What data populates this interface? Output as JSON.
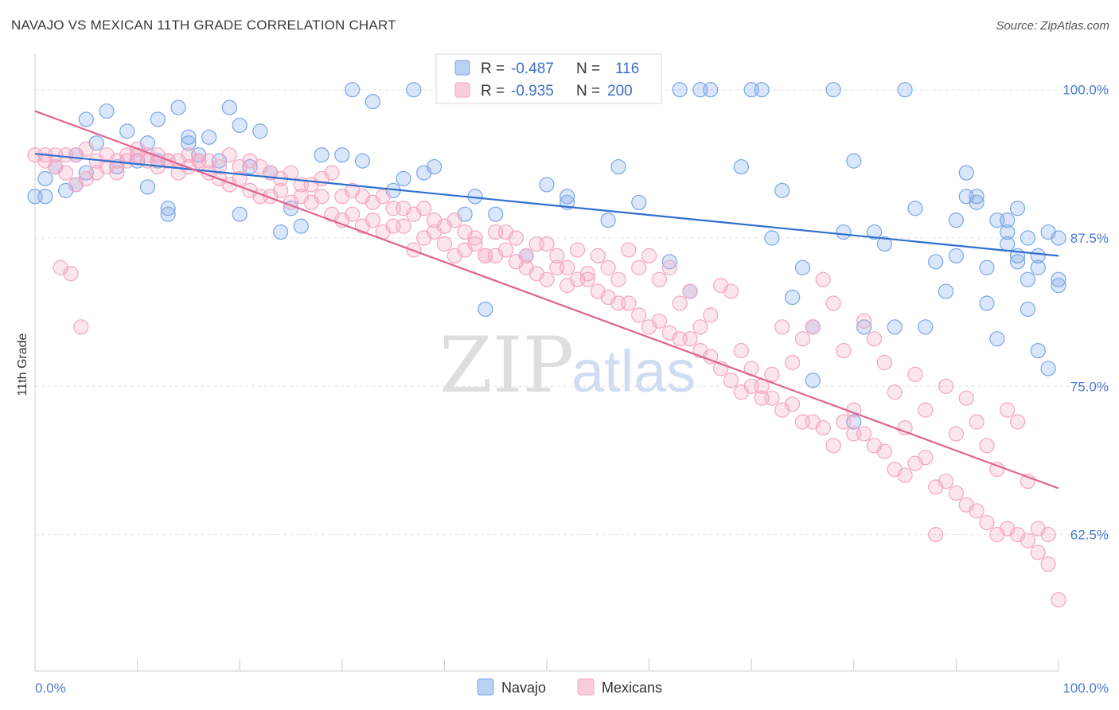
{
  "title": "NAVAJO VS MEXICAN 11TH GRADE CORRELATION CHART",
  "source": "Source: ZipAtlas.com",
  "watermark": {
    "zip": "ZIP",
    "atlas": "atlas"
  },
  "chart_data": {
    "type": "scatter",
    "ylabel": "11th Grade",
    "xlim": [
      0,
      100
    ],
    "ylim": [
      51,
      103
    ],
    "x_tick_labels": [
      "0.0%",
      "100.0%"
    ],
    "y_ticks": [
      62.5,
      75.0,
      87.5,
      100.0
    ],
    "y_tick_labels": [
      "62.5%",
      "75.0%",
      "87.5%",
      "100.0%"
    ],
    "grid": "horizontal dashed",
    "legend_position": "top-center",
    "series": [
      {
        "name": "Navajo",
        "color": "#7aa6e8",
        "line_color": "#2f6fcf",
        "r_label": "R =",
        "r_value": "-0.487",
        "n_label": "N =",
        "n_value": "116",
        "trend": {
          "x": [
            0,
            100
          ],
          "y": [
            94.6,
            86.0
          ]
        },
        "points": [
          [
            0,
            91
          ],
          [
            1,
            92.5
          ],
          [
            1,
            91
          ],
          [
            2,
            93.5
          ],
          [
            3,
            91.5
          ],
          [
            4,
            94.5
          ],
          [
            4,
            92
          ],
          [
            5,
            97.5
          ],
          [
            5,
            93
          ],
          [
            6,
            95.5
          ],
          [
            7,
            98.2
          ],
          [
            8,
            93.5
          ],
          [
            9,
            96.5
          ],
          [
            10,
            94
          ],
          [
            11,
            91.8
          ],
          [
            11,
            95.5
          ],
          [
            12,
            97.5
          ],
          [
            12,
            94
          ],
          [
            13,
            90
          ],
          [
            13,
            89.5
          ],
          [
            14,
            98.5
          ],
          [
            15,
            96
          ],
          [
            15,
            95.5
          ],
          [
            16,
            94.5
          ],
          [
            17,
            96
          ],
          [
            18,
            94
          ],
          [
            19,
            98.5
          ],
          [
            20,
            97
          ],
          [
            20,
            89.5
          ],
          [
            21,
            93.5
          ],
          [
            22,
            96.5
          ],
          [
            23,
            93
          ],
          [
            24,
            88
          ],
          [
            25,
            90
          ],
          [
            26,
            88.5
          ],
          [
            28,
            94.5
          ],
          [
            30,
            94.5
          ],
          [
            31,
            100
          ],
          [
            32,
            94
          ],
          [
            33,
            99
          ],
          [
            35,
            91.5
          ],
          [
            36,
            92.5
          ],
          [
            37,
            100
          ],
          [
            38,
            93
          ],
          [
            39,
            93.5
          ],
          [
            40,
            100
          ],
          [
            42,
            89.5
          ],
          [
            43,
            91
          ],
          [
            44,
            81.5
          ],
          [
            45,
            89.5
          ],
          [
            48,
            86
          ],
          [
            50,
            92
          ],
          [
            52,
            90.5
          ],
          [
            52,
            91
          ],
          [
            55,
            100
          ],
          [
            56,
            89
          ],
          [
            57,
            93.5
          ],
          [
            57,
            100
          ],
          [
            59,
            90.5
          ],
          [
            62,
            85.5
          ],
          [
            63,
            100
          ],
          [
            64,
            83
          ],
          [
            65,
            100
          ],
          [
            66,
            100
          ],
          [
            69,
            93.5
          ],
          [
            70,
            100
          ],
          [
            71,
            100
          ],
          [
            72,
            87.5
          ],
          [
            73,
            91.5
          ],
          [
            74,
            82.5
          ],
          [
            75,
            85
          ],
          [
            76,
            80
          ],
          [
            76,
            75.5
          ],
          [
            78,
            100
          ],
          [
            79,
            88
          ],
          [
            80,
            94
          ],
          [
            80,
            72
          ],
          [
            81,
            80
          ],
          [
            82,
            88
          ],
          [
            83,
            87
          ],
          [
            84,
            80
          ],
          [
            85,
            100
          ],
          [
            86,
            90
          ],
          [
            87,
            80
          ],
          [
            88,
            85.5
          ],
          [
            89,
            83
          ],
          [
            90,
            86
          ],
          [
            90,
            89
          ],
          [
            91,
            93
          ],
          [
            91,
            91
          ],
          [
            92,
            91
          ],
          [
            92,
            90.5
          ],
          [
            93,
            85
          ],
          [
            93,
            82
          ],
          [
            94,
            79
          ],
          [
            94,
            89
          ],
          [
            95,
            88
          ],
          [
            95,
            87
          ],
          [
            96,
            85.5
          ],
          [
            96,
            90
          ],
          [
            97,
            87.5
          ],
          [
            97,
            81.5
          ],
          [
            98,
            85
          ],
          [
            98,
            78
          ],
          [
            99,
            76.5
          ],
          [
            100,
            87.5
          ],
          [
            100,
            84
          ],
          [
            100,
            83.5
          ],
          [
            99,
            88
          ],
          [
            98,
            86
          ],
          [
            97,
            84
          ],
          [
            96,
            86
          ],
          [
            95,
            89
          ]
        ]
      },
      {
        "name": "Mexicans",
        "color": "#f4a6c0",
        "line_color": "#e0628f",
        "r_label": "R =",
        "r_value": "-0.935",
        "n_label": "N =",
        "n_value": "200",
        "trend": {
          "x": [
            0,
            100
          ],
          "y": [
            98.2,
            66.4
          ]
        },
        "points": [
          [
            0,
            94.5
          ],
          [
            1,
            94
          ],
          [
            2,
            94.5
          ],
          [
            3,
            94.5
          ],
          [
            4,
            94.5
          ],
          [
            5,
            95
          ],
          [
            6,
            94
          ],
          [
            7,
            94.5
          ],
          [
            8,
            94
          ],
          [
            9,
            94.5
          ],
          [
            10,
            94.5
          ],
          [
            11,
            94
          ],
          [
            12,
            93.5
          ],
          [
            13,
            94
          ],
          [
            14,
            93
          ],
          [
            15,
            93.5
          ],
          [
            16,
            94
          ],
          [
            17,
            93
          ],
          [
            18,
            92.5
          ],
          [
            19,
            92
          ],
          [
            20,
            92.5
          ],
          [
            21,
            91.5
          ],
          [
            22,
            91
          ],
          [
            23,
            91
          ],
          [
            24,
            91.5
          ],
          [
            25,
            90.5
          ],
          [
            26,
            91
          ],
          [
            27,
            90.5
          ],
          [
            28,
            91
          ],
          [
            29,
            89.5
          ],
          [
            30,
            89
          ],
          [
            31,
            89.5
          ],
          [
            32,
            88.5
          ],
          [
            33,
            89
          ],
          [
            34,
            88
          ],
          [
            35,
            88.5
          ],
          [
            36,
            88.5
          ],
          [
            37,
            86.5
          ],
          [
            38,
            87.5
          ],
          [
            39,
            88
          ],
          [
            40,
            87
          ],
          [
            41,
            86
          ],
          [
            42,
            86.5
          ],
          [
            43,
            87
          ],
          [
            44,
            86
          ],
          [
            45,
            86
          ],
          [
            46,
            86.5
          ],
          [
            47,
            85.5
          ],
          [
            48,
            85
          ],
          [
            49,
            84.5
          ],
          [
            50,
            84
          ],
          [
            51,
            85
          ],
          [
            52,
            83.5
          ],
          [
            53,
            84
          ],
          [
            54,
            84
          ],
          [
            55,
            83
          ],
          [
            56,
            82.5
          ],
          [
            57,
            82
          ],
          [
            58,
            82
          ],
          [
            59,
            81
          ],
          [
            60,
            80
          ],
          [
            61,
            80.5
          ],
          [
            62,
            79.5
          ],
          [
            63,
            79
          ],
          [
            64,
            79
          ],
          [
            65,
            78
          ],
          [
            66,
            77.5
          ],
          [
            67,
            76.5
          ],
          [
            68,
            75.5
          ],
          [
            69,
            74.5
          ],
          [
            70,
            75
          ],
          [
            71,
            74
          ],
          [
            72,
            74
          ],
          [
            73,
            73
          ],
          [
            74,
            73.5
          ],
          [
            75,
            72
          ],
          [
            76,
            72
          ],
          [
            77,
            71.5
          ],
          [
            78,
            70
          ],
          [
            79,
            72
          ],
          [
            80,
            71
          ],
          [
            81,
            71
          ],
          [
            82,
            70
          ],
          [
            83,
            69.5
          ],
          [
            84,
            68
          ],
          [
            85,
            67.5
          ],
          [
            86,
            68.5
          ],
          [
            87,
            69
          ],
          [
            88,
            66.5
          ],
          [
            89,
            67
          ],
          [
            90,
            66
          ],
          [
            91,
            65
          ],
          [
            92,
            64.5
          ],
          [
            93,
            63.5
          ],
          [
            94,
            62.5
          ],
          [
            95,
            63
          ],
          [
            96,
            62.5
          ],
          [
            97,
            62
          ],
          [
            98,
            61
          ],
          [
            99,
            60
          ],
          [
            100,
            57
          ],
          [
            99,
            62.5
          ],
          [
            98,
            63
          ],
          [
            97,
            67
          ],
          [
            96,
            72
          ],
          [
            95,
            73
          ],
          [
            94,
            68
          ],
          [
            93,
            70
          ],
          [
            92,
            72
          ],
          [
            91,
            74
          ],
          [
            90,
            71
          ],
          [
            89,
            75
          ],
          [
            88,
            62.5
          ],
          [
            87,
            73
          ],
          [
            86,
            76
          ],
          [
            85,
            71.5
          ],
          [
            84,
            74.5
          ],
          [
            83,
            77
          ],
          [
            82,
            79
          ],
          [
            81,
            80.5
          ],
          [
            80,
            73
          ],
          [
            79,
            78
          ],
          [
            78,
            82
          ],
          [
            77,
            84
          ],
          [
            76,
            80
          ],
          [
            75,
            79
          ],
          [
            74,
            77
          ],
          [
            73,
            80
          ],
          [
            72,
            76
          ],
          [
            71,
            75
          ],
          [
            70,
            76.5
          ],
          [
            69,
            78
          ],
          [
            68,
            83
          ],
          [
            67,
            83.5
          ],
          [
            66,
            81
          ],
          [
            65,
            80
          ],
          [
            64,
            83
          ],
          [
            63,
            82
          ],
          [
            62,
            85
          ],
          [
            61,
            84
          ],
          [
            60,
            86
          ],
          [
            59,
            85
          ],
          [
            58,
            86.5
          ],
          [
            57,
            84
          ],
          [
            56,
            85
          ],
          [
            55,
            86
          ],
          [
            54,
            84.5
          ],
          [
            53,
            86.5
          ],
          [
            52,
            85
          ],
          [
            51,
            86
          ],
          [
            50,
            87
          ],
          [
            49,
            87
          ],
          [
            48,
            86
          ],
          [
            47,
            87.5
          ],
          [
            46,
            88
          ],
          [
            45,
            88
          ],
          [
            44,
            86
          ],
          [
            43,
            87.5
          ],
          [
            42,
            88
          ],
          [
            41,
            89
          ],
          [
            40,
            88.5
          ],
          [
            39,
            89
          ],
          [
            38,
            90
          ],
          [
            37,
            89.5
          ],
          [
            36,
            90
          ],
          [
            35,
            90
          ],
          [
            34,
            91
          ],
          [
            33,
            90.5
          ],
          [
            32,
            91
          ],
          [
            31,
            91.5
          ],
          [
            30,
            91
          ],
          [
            29,
            93
          ],
          [
            28,
            92.5
          ],
          [
            27,
            92
          ],
          [
            26,
            92
          ],
          [
            25,
            93
          ],
          [
            24,
            92.5
          ],
          [
            23,
            93
          ],
          [
            22,
            93.5
          ],
          [
            21,
            94
          ],
          [
            20,
            93.5
          ],
          [
            19,
            94.5
          ],
          [
            18,
            93.5
          ],
          [
            17,
            94
          ],
          [
            16,
            94
          ],
          [
            15,
            94.5
          ],
          [
            14,
            94
          ],
          [
            13,
            94
          ],
          [
            12,
            94.5
          ],
          [
            11,
            94.5
          ],
          [
            10,
            95
          ],
          [
            9,
            94
          ],
          [
            8,
            93
          ],
          [
            7,
            93.5
          ],
          [
            6,
            93
          ],
          [
            5,
            92.5
          ],
          [
            4,
            92
          ],
          [
            3,
            93
          ],
          [
            2,
            93.5
          ],
          [
            1,
            94.5
          ],
          [
            2.5,
            85
          ],
          [
            3.5,
            84.5
          ],
          [
            4.5,
            80
          ]
        ]
      }
    ]
  }
}
